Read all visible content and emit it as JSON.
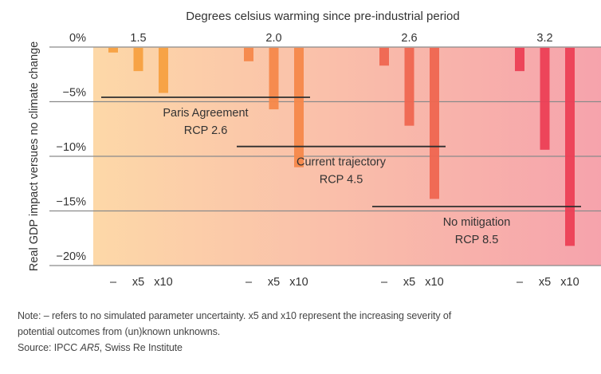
{
  "chart_data": {
    "type": "bar",
    "title": "Degrees celsius warming since pre-industrial period",
    "xlabel": "",
    "ylabel": "Real GDP impact versues no climate change",
    "ylim": [
      -20,
      0
    ],
    "yticks": [
      0,
      -5,
      -10,
      -15,
      -20
    ],
    "ytick_labels": [
      "0%",
      "−5%",
      "−10%",
      "−15%",
      "−20%"
    ],
    "grid": true,
    "categories": [
      "1.5",
      "2.0",
      "2.6",
      "3.2"
    ],
    "sub_categories": [
      "–",
      "x5",
      "x10"
    ],
    "series": [
      {
        "name": "–",
        "values": [
          -0.5,
          -1.3,
          -1.7,
          -2.2
        ]
      },
      {
        "name": "x5",
        "values": [
          -2.2,
          -5.7,
          -7.2,
          -9.4
        ]
      },
      {
        "name": "x10",
        "values": [
          -4.2,
          -11.0,
          -13.9,
          -18.2
        ]
      }
    ],
    "category_colors": [
      "#F7A040",
      "#F5884A",
      "#EF6650",
      "#EC3F55"
    ],
    "background_gradient": [
      "#FDD8A8",
      "#F6A3AC"
    ],
    "annotations": [
      {
        "label_lines": [
          "Paris Agreement",
          "RCP 2.6"
        ],
        "y": -4.6,
        "from_category": 0,
        "to_category": 1
      },
      {
        "label_lines": [
          "Current trajectory",
          "RCP 4.5"
        ],
        "y": -9.1,
        "from_category": 1,
        "to_category": 2
      },
      {
        "label_lines": [
          "No mitigation",
          "RCP 8.5"
        ],
        "y": -14.6,
        "from_category": 2,
        "to_category": 3
      }
    ]
  },
  "footnote": {
    "note": "Note: – refers to no simulated parameter uncertainty. x5 and x10 represent the increasing severity of",
    "note_line2": "potential outcomes from (un)known unknowns.",
    "source_prefix": "Source: IPCC ",
    "source_italic": "AR5",
    "source_suffix": ", Swiss Re Institute"
  }
}
